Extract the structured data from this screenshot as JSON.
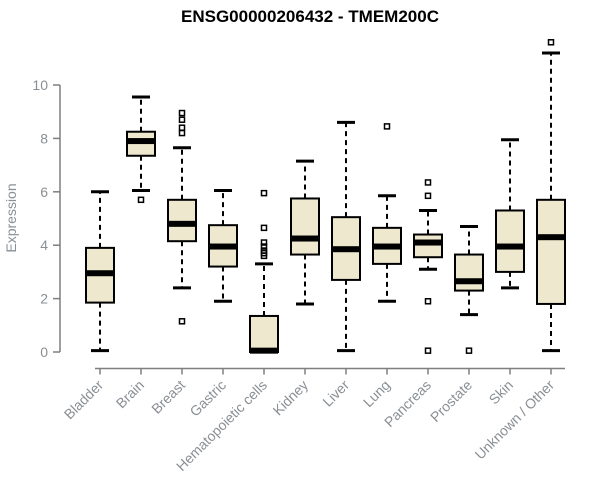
{
  "chart_data": {
    "type": "boxplot",
    "title": "ENSG00000206432 - TMEM200C",
    "xlabel": "",
    "ylabel": "Expression",
    "y_ticks": [
      0,
      2,
      4,
      6,
      8,
      10
    ],
    "ylim": [
      0,
      10
    ],
    "grid": "off",
    "legend": "none",
    "categories": [
      "Bladder",
      "Brain",
      "Breast",
      "Gastric",
      "Hematopoietic cells",
      "Kidney",
      "Liver",
      "Lung",
      "Pancreas",
      "Prostate",
      "Skin",
      "Unknown / Other"
    ],
    "boxes": [
      {
        "category": "Bladder",
        "whisker_low": 0.05,
        "q1": 1.85,
        "median": 2.95,
        "q3": 3.9,
        "whisker_high": 6.0,
        "outliers": []
      },
      {
        "category": "Brain",
        "whisker_low": 6.05,
        "q1": 7.35,
        "median": 7.9,
        "q3": 8.25,
        "whisker_high": 9.55,
        "outliers": [
          5.7
        ]
      },
      {
        "category": "Breast",
        "whisker_low": 2.4,
        "q1": 4.15,
        "median": 4.8,
        "q3": 5.7,
        "whisker_high": 7.65,
        "outliers": [
          8.95,
          8.7,
          8.4,
          8.2,
          1.15
        ]
      },
      {
        "category": "Gastric",
        "whisker_low": 1.9,
        "q1": 3.2,
        "median": 3.95,
        "q3": 4.75,
        "whisker_high": 6.05,
        "outliers": []
      },
      {
        "category": "Hematopoietic cells",
        "whisker_low": 0.0,
        "q1": 0.0,
        "median": 0.05,
        "q3": 1.35,
        "whisker_high": 3.3,
        "outliers": [
          5.95,
          4.65,
          4.1,
          3.95,
          3.8,
          3.7,
          3.6
        ]
      },
      {
        "category": "Kidney",
        "whisker_low": 1.8,
        "q1": 3.65,
        "median": 4.25,
        "q3": 5.75,
        "whisker_high": 7.15,
        "outliers": []
      },
      {
        "category": "Liver",
        "whisker_low": 0.05,
        "q1": 2.7,
        "median": 3.85,
        "q3": 5.05,
        "whisker_high": 8.6,
        "outliers": []
      },
      {
        "category": "Lung",
        "whisker_low": 1.9,
        "q1": 3.3,
        "median": 3.95,
        "q3": 4.65,
        "whisker_high": 5.85,
        "outliers": [
          8.45
        ]
      },
      {
        "category": "Pancreas",
        "whisker_low": 3.1,
        "q1": 3.55,
        "median": 4.1,
        "q3": 4.4,
        "whisker_high": 5.3,
        "outliers": [
          6.35,
          5.85,
          1.9,
          0.05
        ]
      },
      {
        "category": "Prostate",
        "whisker_low": 1.4,
        "q1": 2.3,
        "median": 2.65,
        "q3": 3.65,
        "whisker_high": 4.7,
        "outliers": [
          0.05
        ]
      },
      {
        "category": "Skin",
        "whisker_low": 2.4,
        "q1": 3.0,
        "median": 3.95,
        "q3": 5.3,
        "whisker_high": 7.95,
        "outliers": []
      },
      {
        "category": "Unknown / Other",
        "whisker_low": 0.05,
        "q1": 1.8,
        "median": 4.3,
        "q3": 5.7,
        "whisker_high": 11.2,
        "outliers": [
          11.6
        ]
      }
    ],
    "colors": {
      "box_fill": "#EDE8CE",
      "box_stroke": "#000000",
      "median": "#000000",
      "axis": "#7F7F7F",
      "labels": "#8A8F94",
      "title": "#000000",
      "background": "#FFFFFF"
    }
  }
}
